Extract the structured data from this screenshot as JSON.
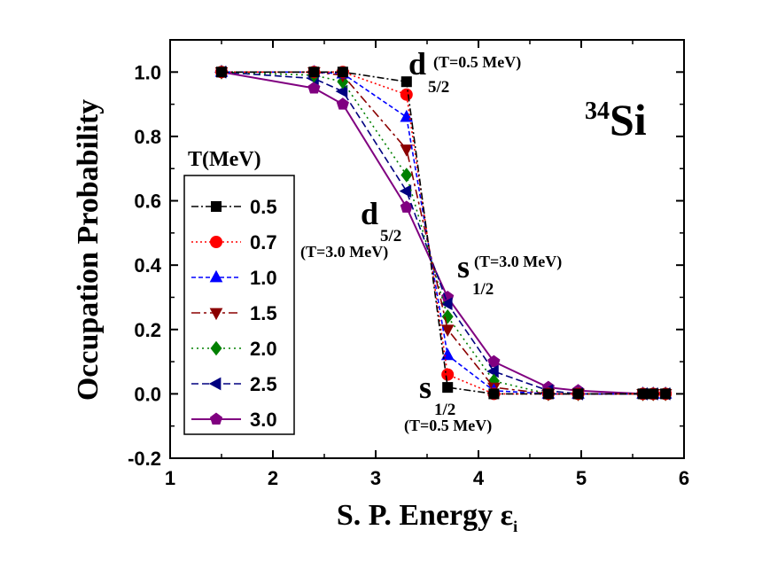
{
  "chart_data": {
    "type": "line",
    "xlabel": "S. P. Energy ε",
    "xlabel_sub": "i",
    "ylabel": "Occupation Probability",
    "xlim": [
      1,
      6
    ],
    "ylim": [
      -0.2,
      1.1
    ],
    "xticks": [
      1,
      2,
      3,
      4,
      5,
      6
    ],
    "yticks": [
      -0.2,
      0.0,
      0.2,
      0.4,
      0.6,
      0.8,
      1.0
    ],
    "ytick_labels": [
      "-0.2",
      "0.0",
      "0.2",
      "0.4",
      "0.6",
      "0.8",
      "1.0"
    ],
    "grid": false,
    "legend_title": "T(MeV)",
    "legend_position": "left",
    "nucleus": {
      "mass": "34",
      "symbol": "Si"
    },
    "x": [
      1.5,
      2.4,
      2.68,
      3.3,
      3.7,
      4.15,
      4.68,
      4.97,
      5.6,
      5.7,
      5.82
    ],
    "series": [
      {
        "name": "0.5",
        "color": "#000000",
        "marker": "square",
        "dash": "8,3,2,3",
        "values": [
          1.0,
          1.0,
          1.0,
          0.97,
          0.02,
          0.0,
          0.0,
          0.0,
          0.0,
          0.0,
          0.0
        ]
      },
      {
        "name": "0.7",
        "color": "#ff0000",
        "marker": "circle",
        "dash": "2,3",
        "values": [
          1.0,
          1.0,
          1.0,
          0.93,
          0.06,
          0.0,
          0.0,
          0.0,
          0.0,
          0.0,
          0.0
        ]
      },
      {
        "name": "1.0",
        "color": "#0000ff",
        "marker": "triangle-up",
        "dash": "5,3",
        "values": [
          1.0,
          1.0,
          0.995,
          0.86,
          0.12,
          0.01,
          0.0,
          0.0,
          0.0,
          0.0,
          0.0
        ]
      },
      {
        "name": "1.5",
        "color": "#8b0000",
        "marker": "triangle-down",
        "dash": "10,4,3,4",
        "values": [
          1.0,
          1.0,
          0.99,
          0.76,
          0.2,
          0.02,
          0.0,
          0.0,
          0.0,
          0.0,
          0.0
        ]
      },
      {
        "name": "2.0",
        "color": "#008000",
        "marker": "diamond",
        "dash": "2,4",
        "values": [
          1.0,
          0.99,
          0.97,
          0.68,
          0.24,
          0.04,
          0.0,
          0.0,
          0.0,
          0.0,
          0.0
        ]
      },
      {
        "name": "2.5",
        "color": "#000080",
        "marker": "triangle-left",
        "dash": "8,4",
        "values": [
          1.0,
          0.98,
          0.94,
          0.63,
          0.28,
          0.07,
          0.01,
          0.0,
          0.0,
          0.0,
          0.0
        ]
      },
      {
        "name": "3.0",
        "color": "#800080",
        "marker": "pentagon",
        "dash": "",
        "values": [
          1.0,
          0.95,
          0.9,
          0.58,
          0.3,
          0.1,
          0.02,
          0.01,
          0.0,
          0.0,
          0.0
        ]
      }
    ],
    "annotations": [
      {
        "main": "d",
        "sub": "5/2",
        "sup": "(T=0.5 MeV)"
      },
      {
        "main": "d",
        "sub": "5/2",
        "below": "(T=3.0 MeV)"
      },
      {
        "main": "s",
        "sub": "1/2",
        "sup": "(T=3.0 MeV)"
      },
      {
        "main": "s",
        "sub": "1/2",
        "below": "(T=0.5 MeV)"
      }
    ]
  }
}
